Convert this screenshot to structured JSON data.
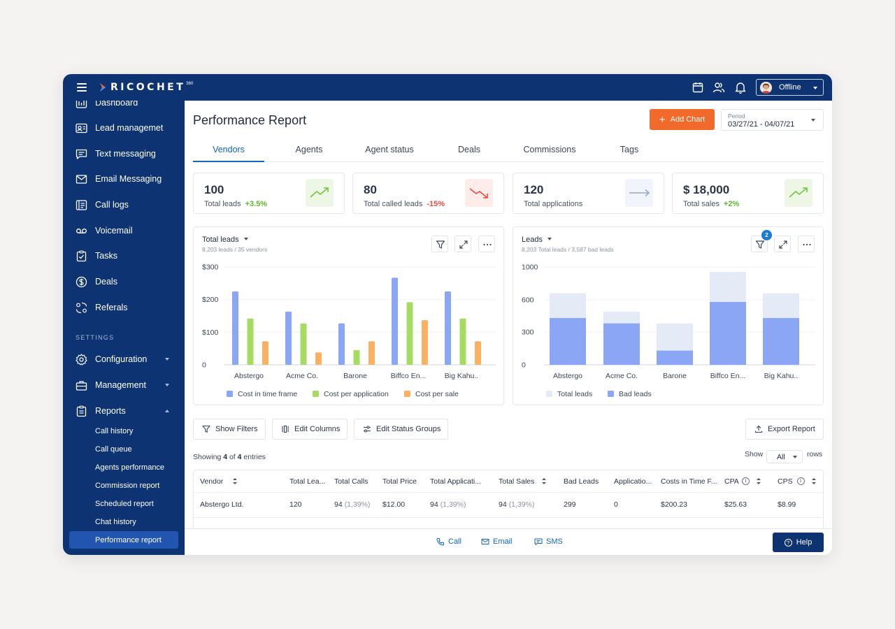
{
  "header": {
    "logo_text": "RICOCHET",
    "logo_sup": "360",
    "status": "Offline",
    "colors": {
      "bar": "#0d3372",
      "accent": "#f26a2a"
    }
  },
  "sidebar": {
    "items": [
      {
        "label": "Dashboard",
        "icon": "dashboard-icon"
      },
      {
        "label": "Lead managemet",
        "icon": "contact-card-icon"
      },
      {
        "label": "Text messaging",
        "icon": "chat-icon"
      },
      {
        "label": "Email Messaging",
        "icon": "envelope-icon"
      },
      {
        "label": "Call logs",
        "icon": "call-log-icon"
      },
      {
        "label": "Voicemail",
        "icon": "voicemail-icon"
      },
      {
        "label": "Tasks",
        "icon": "clipboard-check-icon"
      },
      {
        "label": "Deals",
        "icon": "dollar-icon"
      },
      {
        "label": "Referals",
        "icon": "referral-icon"
      }
    ],
    "settings_label": "SETTINGS",
    "settings_items": [
      {
        "label": "Configuration",
        "icon": "gear-icon"
      },
      {
        "label": "Management",
        "icon": "briefcase-icon"
      },
      {
        "label": "Reports",
        "icon": "clipboard-icon"
      }
    ],
    "report_sub_items": [
      "Call history",
      "Call queue",
      "Agents performance",
      "Commission report",
      "Scheduled report",
      "Chat history",
      "Performance report"
    ]
  },
  "main": {
    "title": "Performance Report",
    "add_chart_label": "Add Chart",
    "period_label": "Period",
    "period_value": "03/27/21 - 04/07/21",
    "tabs": [
      "Vendors",
      "Agents",
      "Agent status",
      "Deals",
      "Commissions",
      "Tags"
    ],
    "kpis": [
      {
        "value": "100",
        "label": "Total leads",
        "delta": "+3.5%",
        "trend": "up"
      },
      {
        "value": "80",
        "label": "Total called leads",
        "delta": "-15%",
        "trend": "down"
      },
      {
        "value": "120",
        "label": "Total applications",
        "delta": "",
        "trend": "flat"
      },
      {
        "value": "$ 18,000",
        "label": "Total sales",
        "delta": "+2%",
        "trend": "up"
      }
    ]
  },
  "chart_data": [
    {
      "type": "bar",
      "title": "Total leads",
      "subtitle": "8,203 leads / 35 vendors",
      "categories": [
        "Abstergo",
        "Acme Co.",
        "Barone",
        "Biffco En...",
        "Big Kahu.."
      ],
      "y_ticks": [
        "$300",
        "$200",
        "$100",
        "0"
      ],
      "ylim": [
        0,
        300
      ],
      "series": [
        {
          "name": "Cost in time frame",
          "color": "#8ba6f5",
          "values": [
            225,
            163,
            127,
            267,
            225
          ]
        },
        {
          "name": "Cost per application",
          "color": "#a6dc62",
          "values": [
            142,
            127,
            45,
            192,
            142
          ]
        },
        {
          "name": "Cost per sale",
          "color": "#fbb062",
          "values": [
            72,
            38,
            72,
            137,
            72
          ]
        }
      ],
      "legend": "bottom"
    },
    {
      "type": "bar",
      "stacked": true,
      "title": "Leads",
      "subtitle": "8,203 Total leads / 3,587 bad leads",
      "filter_badge": "2",
      "categories": [
        "Abstergo",
        "Acme Co.",
        "Barone",
        "Biffco En...",
        "Big Kahu.."
      ],
      "y_ticks": [
        "1000",
        "600",
        "300",
        "0"
      ],
      "series": [
        {
          "name": "Total leads",
          "color": "#e4ebf6",
          "values": [
            680,
            490,
            380,
            940,
            680
          ]
        },
        {
          "name": "Bad leads",
          "color": "#8ba6f5",
          "values": [
            430,
            380,
            130,
            580,
            430
          ]
        }
      ],
      "legend": "bottom"
    }
  ],
  "toolbar": {
    "show_filters": "Show Filters",
    "edit_columns": "Edit Columns",
    "edit_status_groups": "Edit Status Groups",
    "export_report": "Export Report"
  },
  "table": {
    "showing_prefix": "Showing",
    "showing_count": "4",
    "showing_mid": "of",
    "showing_total": "4",
    "showing_suffix": "entries",
    "show_label": "Show",
    "rows_value": "All",
    "rows_label": "rows",
    "headers": [
      "Vendor",
      "Total Lea...",
      "Total Calls",
      "Total Price",
      "Total Applicati...",
      "Total Sales",
      "Bad Leads",
      "Applicatio...",
      "Costs in Time F...",
      "CPA",
      "CPS"
    ],
    "rows": [
      {
        "vendor": "Abstergo Ltd.",
        "total_leads": "120",
        "total_calls": "94",
        "total_calls_pct": "(1,39%)",
        "total_price": "$12.00",
        "total_apps": "94",
        "total_apps_pct": "(1,39%)",
        "total_sales": "94",
        "total_sales_pct": "(1,39%)",
        "bad_leads": "299",
        "applications": "0",
        "costs": "$200.23",
        "cpa": "$25.63",
        "cps": "$8.99"
      }
    ]
  },
  "bottom": {
    "call": "Call",
    "email": "Email",
    "sms": "SMS",
    "help": "Help"
  }
}
